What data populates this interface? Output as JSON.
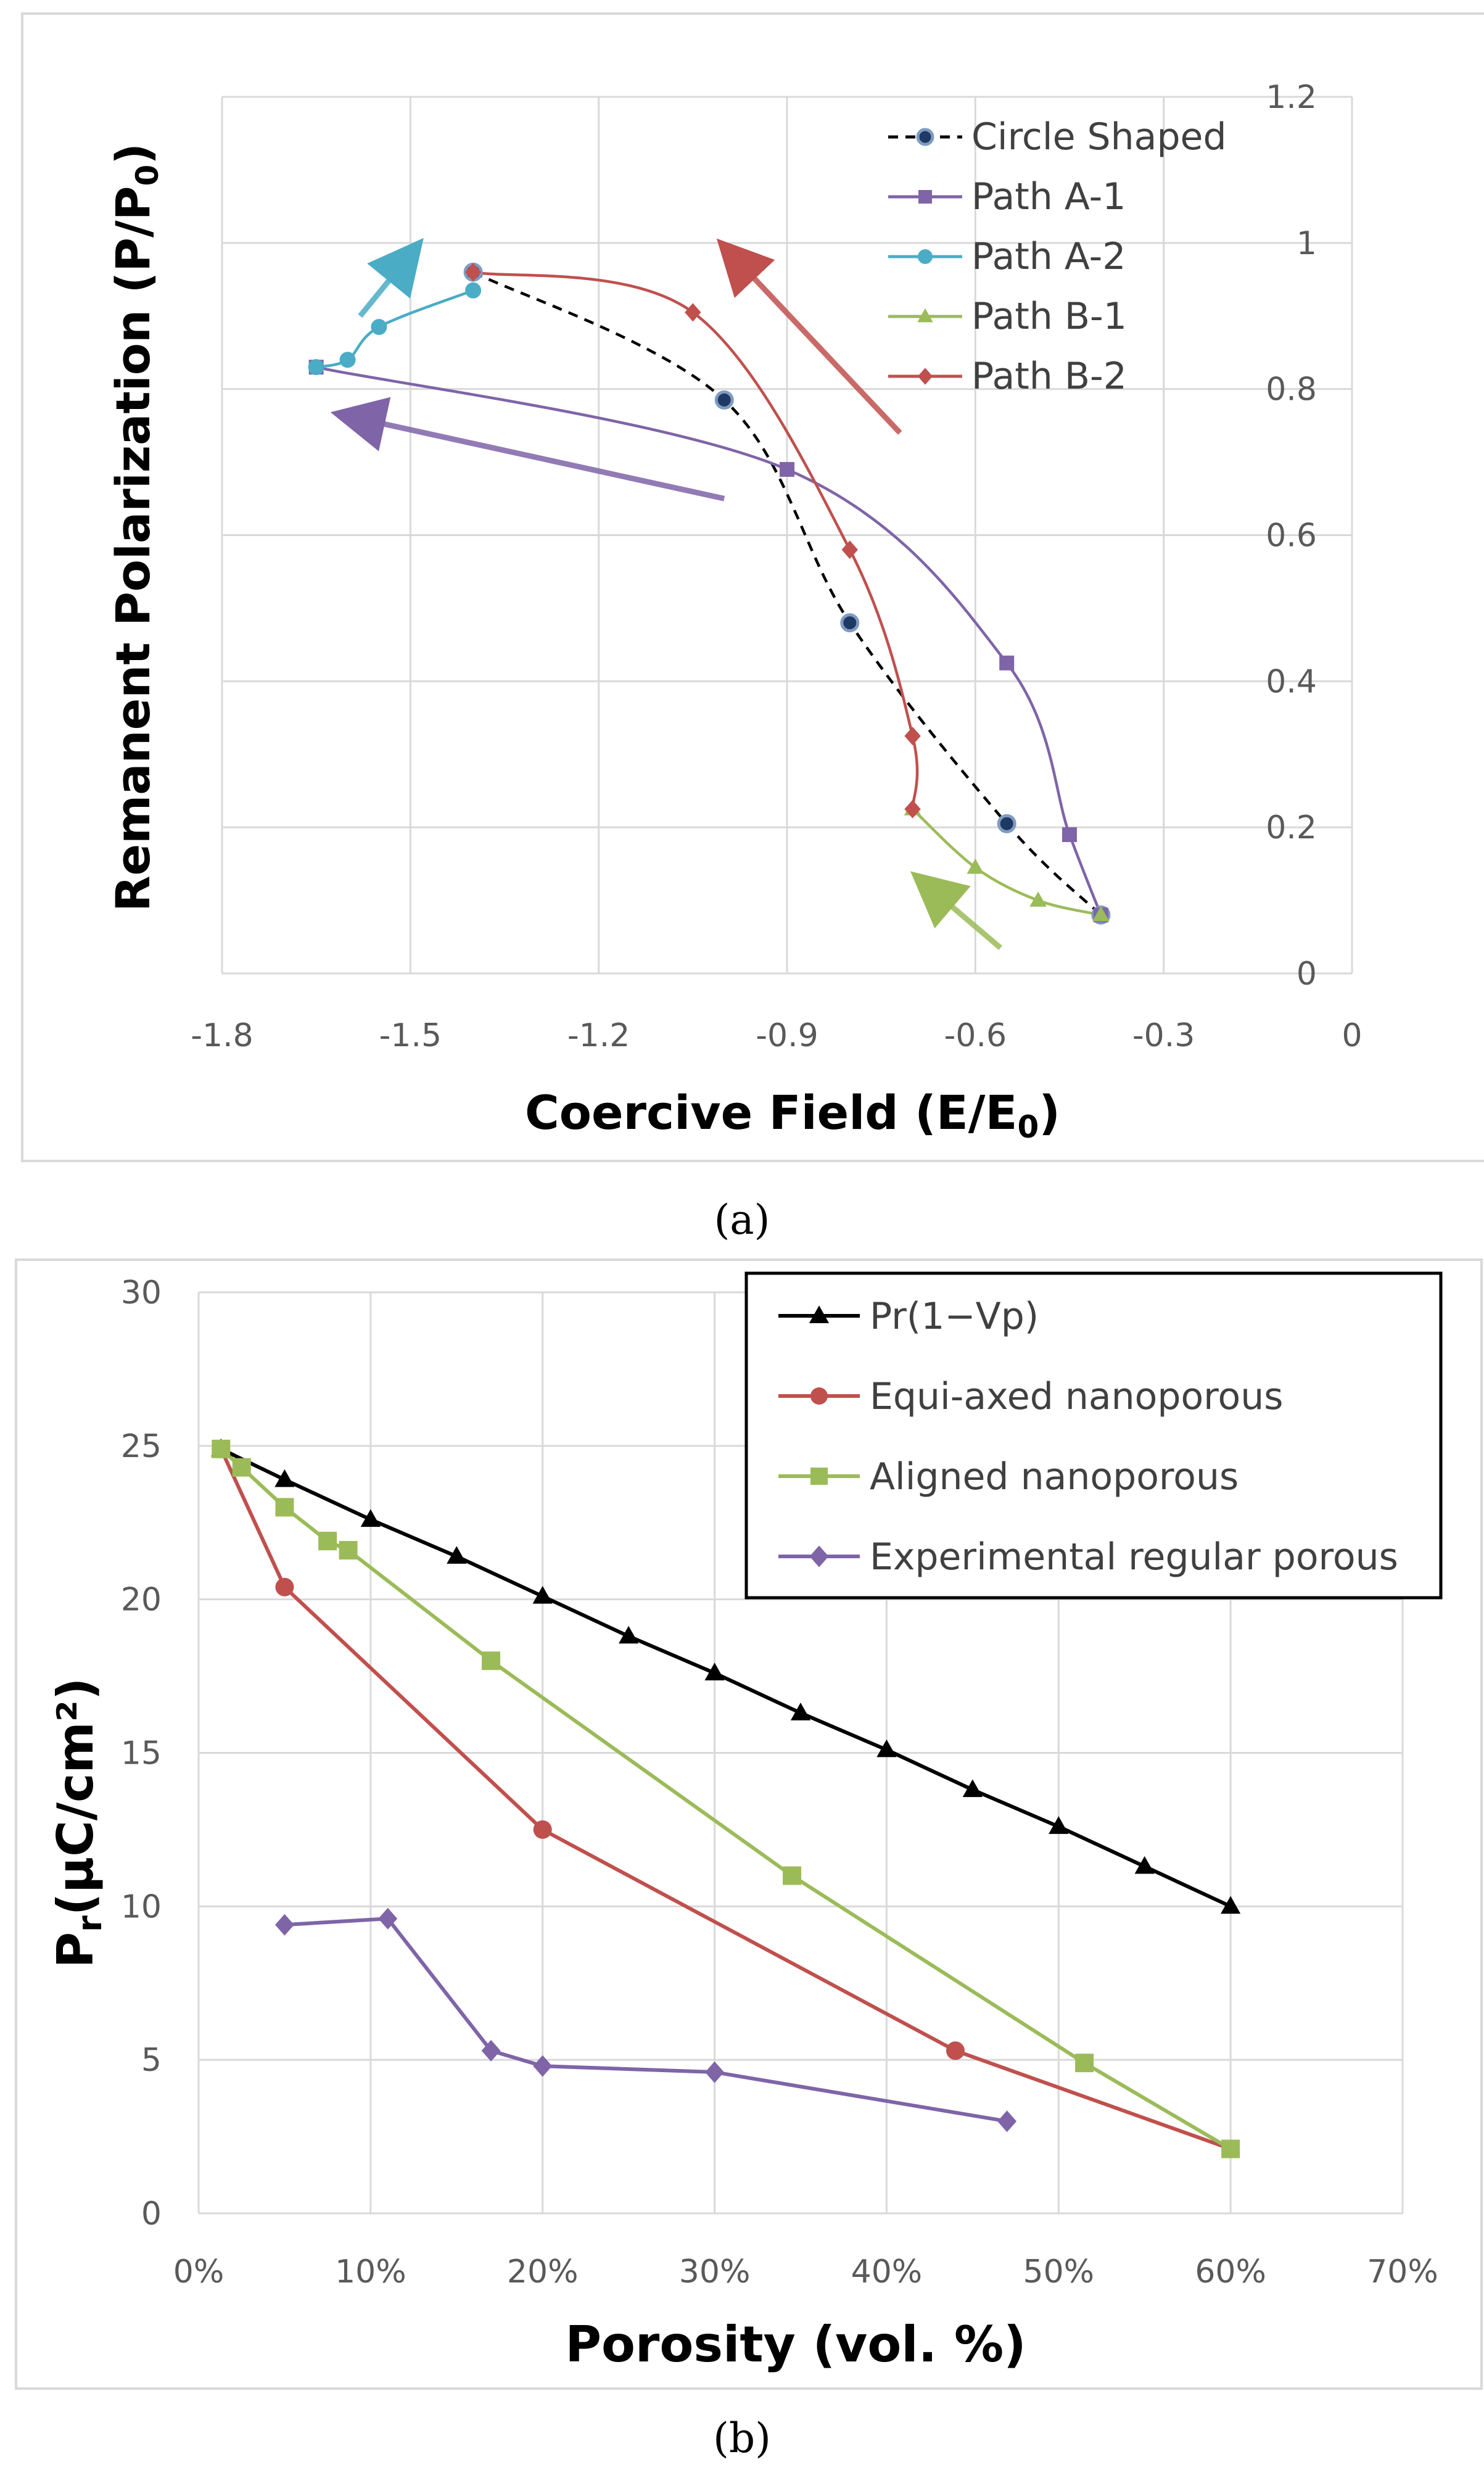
{
  "chart_data": [
    {
      "type": "line",
      "panel_label": "(a)",
      "xlabel": "Coercive Field (E/E",
      "xlabel_sub": "0",
      "xlabel_suffix": ")",
      "ylabel": "Remanent Polarization (P/P",
      "ylabel_sub": "0",
      "ylabel_suffix": ")",
      "xlim": [
        -1.8,
        0
      ],
      "ylim": [
        0,
        1.2
      ],
      "xticks": [
        -1.8,
        -1.5,
        -1.2,
        -0.9,
        -0.6,
        -0.3,
        0
      ],
      "xtick_labels": [
        "-1.8",
        "-1.5",
        "-1.2",
        "-0.9",
        "-0.6",
        "-0.3",
        "0"
      ],
      "yticks": [
        0,
        0.2,
        0.4,
        0.6,
        0.8,
        1,
        1.2
      ],
      "ytick_labels": [
        "0",
        "0.2",
        "0.4",
        "0.6",
        "0.8",
        "1",
        "1.2"
      ],
      "y_axis_side": "right",
      "grid": true,
      "legend_position": "top-right",
      "series": [
        {
          "name": "Circle Shaped",
          "color": "#1f3864",
          "marker": "circle",
          "dashed": true,
          "x": [
            -1.4,
            -1.0,
            -0.8,
            -0.55,
            -0.4
          ],
          "y": [
            0.96,
            0.785,
            0.48,
            0.205,
            0.08
          ]
        },
        {
          "name": "Path A-1",
          "color": "#7f64a8",
          "marker": "square",
          "dashed": false,
          "x": [
            -1.65,
            -0.9,
            -0.55,
            -0.45,
            -0.4
          ],
          "y": [
            0.83,
            0.69,
            0.425,
            0.19,
            0.08
          ]
        },
        {
          "name": "Path A-2",
          "color": "#4bacc6",
          "marker": "circle",
          "dashed": false,
          "x": [
            -1.65,
            -1.6,
            -1.55,
            -1.4
          ],
          "y": [
            0.83,
            0.84,
            0.885,
            0.935
          ]
        },
        {
          "name": "Path B-1",
          "color": "#9bbb59",
          "marker": "triangle",
          "dashed": false,
          "x": [
            -0.7,
            -0.6,
            -0.5,
            -0.4
          ],
          "y": [
            0.225,
            0.145,
            0.1,
            0.08
          ]
        },
        {
          "name": "Path B-2",
          "color": "#c0504d",
          "marker": "diamond",
          "dashed": false,
          "x": [
            -1.4,
            -1.05,
            -0.8,
            -0.7,
            -0.7
          ],
          "y": [
            0.96,
            0.905,
            0.58,
            0.325,
            0.225
          ]
        }
      ],
      "annotations": [
        {
          "type": "arrow",
          "color": "#4bacc6",
          "from": [
            -1.58,
            0.9
          ],
          "to": [
            -1.49,
            0.995
          ]
        },
        {
          "type": "arrow",
          "color": "#c0504d",
          "from": [
            -0.72,
            0.74
          ],
          "to": [
            -1.0,
            0.995
          ]
        },
        {
          "type": "arrow",
          "color": "#7f64a8",
          "from": [
            -1.0,
            0.65
          ],
          "to": [
            -1.61,
            0.765
          ]
        },
        {
          "type": "arrow",
          "color": "#9bbb59",
          "from": [
            -0.56,
            0.035
          ],
          "to": [
            -0.69,
            0.13
          ]
        }
      ]
    },
    {
      "type": "line",
      "panel_label": "(b)",
      "xlabel": "Porosity (vol. %)",
      "ylabel": "P",
      "ylabel_sub": "r",
      "ylabel_suffix": "(μC/cm²)",
      "xlim": [
        0,
        70
      ],
      "ylim": [
        0,
        30
      ],
      "xticks": [
        0,
        10,
        20,
        30,
        40,
        50,
        60,
        70
      ],
      "xtick_labels": [
        "0%",
        "10%",
        "20%",
        "30%",
        "40%",
        "50%",
        "60%",
        "70%"
      ],
      "yticks": [
        0,
        5,
        10,
        15,
        20,
        25,
        30
      ],
      "ytick_labels": [
        "0",
        "5",
        "10",
        "15",
        "20",
        "25",
        "30"
      ],
      "grid": true,
      "legend_position": "top-right",
      "series": [
        {
          "name": "Pr(1−Vp)",
          "color": "#000000",
          "marker": "triangle",
          "x": [
            1.3,
            5,
            10,
            15,
            20,
            25,
            30,
            35,
            40,
            45,
            50,
            55,
            60
          ],
          "y": [
            24.9,
            23.9,
            22.6,
            21.4,
            20.1,
            18.8,
            17.6,
            16.3,
            15.1,
            13.8,
            12.6,
            11.3,
            10.0
          ]
        },
        {
          "name": "Equi-axed nanoporous",
          "color": "#c0504d",
          "marker": "circle",
          "x": [
            1.3,
            5,
            20,
            44,
            60
          ],
          "y": [
            24.9,
            20.4,
            12.5,
            5.3,
            2.1
          ]
        },
        {
          "name": "Aligned nanoporous",
          "color": "#9bbb59",
          "marker": "square",
          "x": [
            1.3,
            2.5,
            5,
            7.5,
            8.7,
            17,
            34.5,
            51.5,
            60
          ],
          "y": [
            24.9,
            24.3,
            23.0,
            21.9,
            21.6,
            18.0,
            11.0,
            4.9,
            2.1
          ]
        },
        {
          "name": "Experimental regular porous",
          "color": "#7f64a8",
          "marker": "diamond",
          "x": [
            5,
            11,
            17,
            20,
            30,
            47
          ],
          "y": [
            9.4,
            9.6,
            5.3,
            4.8,
            4.6,
            3.0
          ]
        }
      ]
    }
  ]
}
